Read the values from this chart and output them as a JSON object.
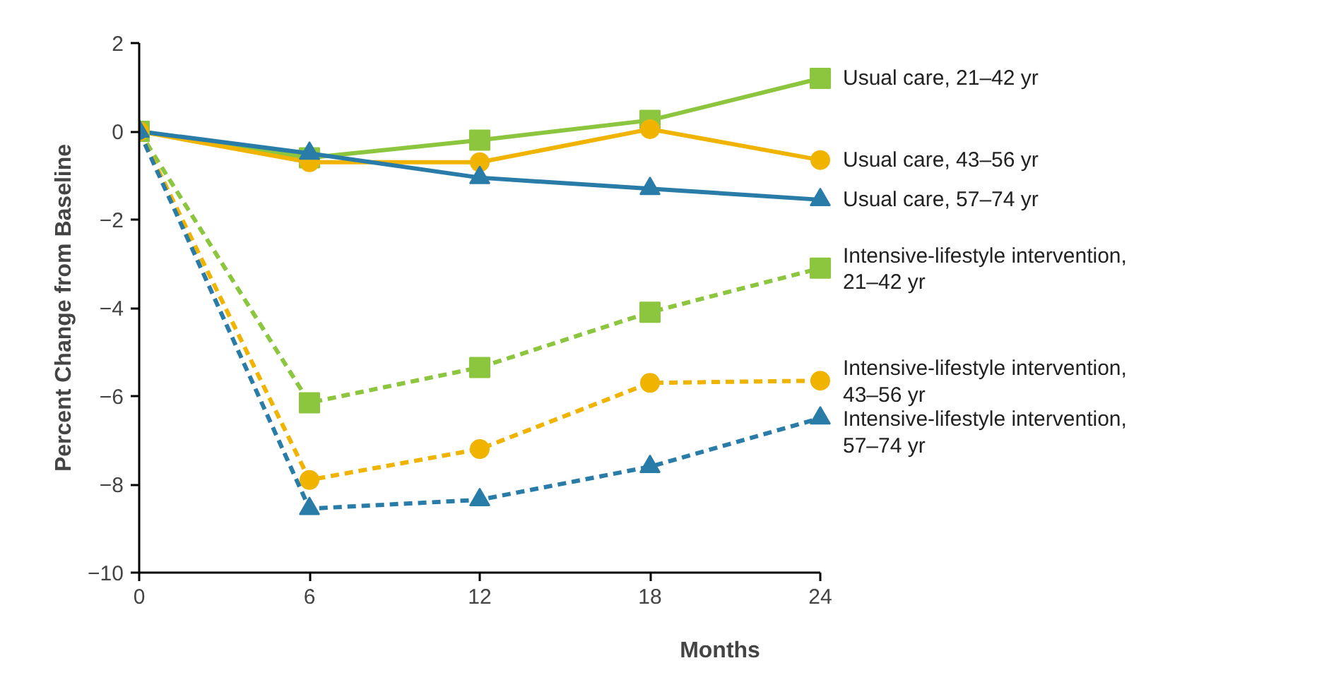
{
  "chart_data": {
    "type": "line",
    "xlabel": "Months",
    "ylabel": "Percent Change from Baseline",
    "x": [
      0,
      6,
      12,
      18,
      24
    ],
    "xlim": [
      0,
      24
    ],
    "xticks": [
      0,
      6,
      12,
      18,
      24
    ],
    "ylim": [
      -10,
      2
    ],
    "yticks": [
      -10,
      -8,
      -6,
      -4,
      -2,
      0,
      2
    ],
    "grid": false,
    "series": [
      {
        "name": "Usual care, 21–42 yr",
        "color": "#8cc63f",
        "marker": "square",
        "line_style": "solid",
        "values": [
          0,
          -0.6,
          -0.2,
          0.25,
          1.2
        ]
      },
      {
        "name": "Usual care, 43–56 yr",
        "color": "#f0b400",
        "marker": "circle",
        "line_style": "solid",
        "values": [
          0,
          -0.7,
          -0.7,
          0.05,
          -0.65
        ]
      },
      {
        "name": "Usual care, 57–74 yr",
        "color": "#2a7ca8",
        "marker": "triangle",
        "line_style": "solid",
        "values": [
          0,
          -0.5,
          -1.05,
          -1.3,
          -1.55
        ]
      },
      {
        "name": "Intensive-lifestyle intervention,\n21–42 yr",
        "color": "#8cc63f",
        "marker": "square",
        "line_style": "dashed",
        "values": [
          0,
          -6.15,
          -5.35,
          -4.1,
          -3.1
        ]
      },
      {
        "name": "Intensive-lifestyle intervention,\n43–56 yr",
        "color": "#f0b400",
        "marker": "circle",
        "line_style": "dashed",
        "values": [
          0,
          -7.9,
          -7.2,
          -5.7,
          -5.65
        ]
      },
      {
        "name": "Intensive-lifestyle intervention,\n57–74 yr",
        "color": "#2a7ca8",
        "marker": "triangle",
        "line_style": "dashed",
        "values": [
          0,
          -8.55,
          -8.35,
          -7.6,
          -6.5
        ]
      }
    ]
  }
}
